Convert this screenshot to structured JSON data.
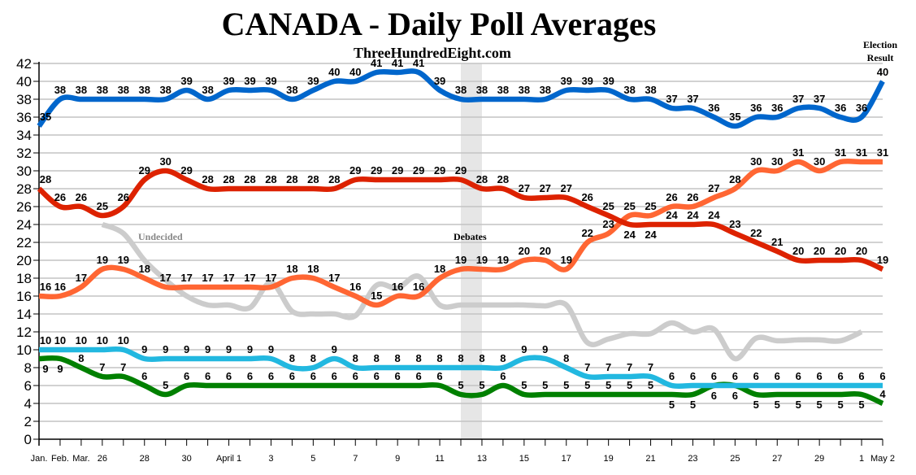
{
  "chart_data": {
    "type": "line",
    "title": "CANADA - Daily Poll Averages",
    "subtitle": "ThreeHundredEight.com",
    "ylim": [
      0,
      42
    ],
    "yticks": [
      0,
      2,
      4,
      6,
      8,
      10,
      12,
      14,
      16,
      18,
      20,
      22,
      24,
      26,
      28,
      30,
      32,
      34,
      36,
      38,
      40,
      42
    ],
    "grid": true,
    "x_tick_labels": [
      "Jan.",
      "Feb.",
      "Mar.",
      "26",
      "",
      "28",
      "",
      "30",
      "",
      "April 1",
      "",
      "3",
      "",
      "5",
      "",
      "7",
      "",
      "9",
      "",
      "11",
      "",
      "13",
      "",
      "15",
      "",
      "17",
      "",
      "19",
      "",
      "21",
      "",
      "23",
      "",
      "25",
      "",
      "27",
      "",
      "29",
      "",
      "1",
      "May 2"
    ],
    "annotations": {
      "undecided": "Undecided",
      "debates": "Debates",
      "election_result_line1": "Election",
      "election_result_line2": "Result"
    },
    "debates_span": [
      "12",
      "13"
    ],
    "series": [
      {
        "key": "blue",
        "color": "#0066cc",
        "labeled": true,
        "values": [
          35,
          38,
          38,
          38,
          38,
          38,
          38,
          39,
          38,
          39,
          39,
          39,
          38,
          39,
          40,
          40,
          41,
          41,
          41,
          39,
          38,
          38,
          38,
          38,
          38,
          39,
          39,
          39,
          38,
          38,
          37,
          37,
          36,
          35,
          36,
          36,
          37,
          37,
          36,
          36,
          40
        ]
      },
      {
        "key": "red",
        "color": "#dd2200",
        "labeled": true,
        "values": [
          28,
          26,
          26,
          25,
          26,
          29,
          30,
          29,
          28,
          28,
          28,
          28,
          28,
          28,
          28,
          29,
          29,
          29,
          29,
          29,
          29,
          28,
          28,
          27,
          27,
          27,
          26,
          25,
          24,
          24,
          24,
          24,
          24,
          23,
          22,
          21,
          20,
          20,
          20,
          20,
          19
        ]
      },
      {
        "key": "orange",
        "color": "#ff6633",
        "labeled": true,
        "values": [
          16,
          16,
          17,
          19,
          19,
          18,
          17,
          17,
          17,
          17,
          17,
          17,
          18,
          18,
          17,
          16,
          15,
          16,
          16,
          18,
          19,
          19,
          19,
          20,
          20,
          19,
          22,
          23,
          25,
          25,
          26,
          26,
          27,
          28,
          30,
          30,
          31,
          30,
          31,
          31,
          31
        ]
      },
      {
        "key": "lightblue",
        "color": "#22b8e0",
        "labeled": true,
        "values": [
          10,
          10,
          10,
          10,
          10,
          9,
          9,
          9,
          9,
          9,
          9,
          9,
          8,
          8,
          9,
          8,
          8,
          8,
          8,
          8,
          8,
          8,
          8,
          9,
          9,
          8,
          7,
          7,
          7,
          7,
          6,
          6,
          6,
          6,
          6,
          6,
          6,
          6,
          6,
          6,
          6
        ]
      },
      {
        "key": "green",
        "color": "#008000",
        "labeled": true,
        "values": [
          9,
          9,
          8,
          7,
          7,
          6,
          5,
          6,
          6,
          6,
          6,
          6,
          6,
          6,
          6,
          6,
          6,
          6,
          6,
          6,
          5,
          5,
          6,
          5,
          5,
          5,
          5,
          5,
          5,
          5,
          5,
          5,
          6,
          6,
          5,
          5,
          5,
          5,
          5,
          5,
          4
        ]
      },
      {
        "key": "undecided",
        "name": "Undecided",
        "color": "#cccccc",
        "labeled": false,
        "start_index": 3,
        "values": [
          24,
          23,
          20,
          17.8,
          16,
          15,
          15,
          14.7,
          17.5,
          14.3,
          14,
          14,
          13.8,
          17.2,
          16.9,
          18.2,
          15,
          15,
          15,
          15,
          15,
          14.9,
          15,
          10.8,
          11.2,
          11.8,
          11.8,
          13,
          12,
          12.3,
          9,
          11.3,
          11,
          11.1,
          11.1,
          11,
          12
        ]
      }
    ]
  }
}
